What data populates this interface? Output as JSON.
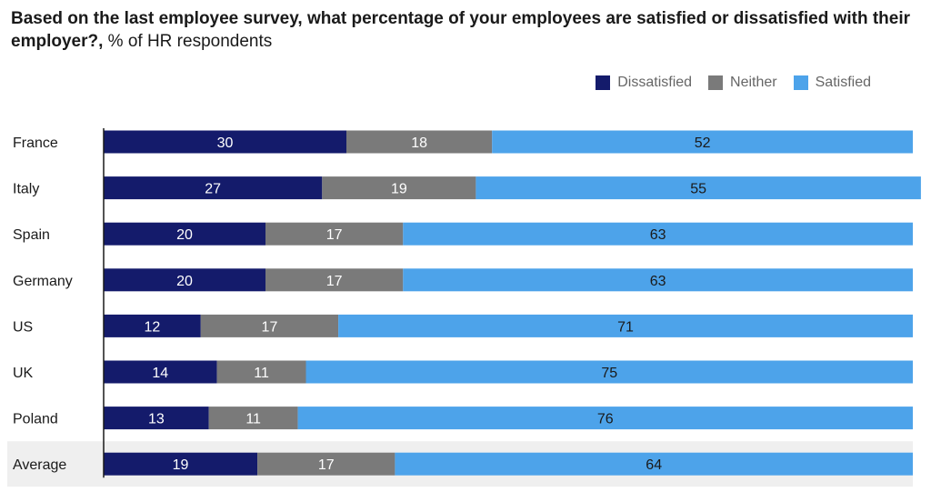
{
  "title": {
    "bold": "Based on the last employee survey, what percentage of your employees are satisfied or dissatisfied with their employer?,",
    "subtitle": "% of HR respondents"
  },
  "colors": {
    "dissatisfied": "#141b6b",
    "neither": "#7a7a7a",
    "satisfied": "#4da3ea",
    "average_band": "#efefef",
    "axis": "#1a1a1a"
  },
  "legend": [
    {
      "label": "Dissatisfied",
      "color_key": "dissatisfied"
    },
    {
      "label": "Neither",
      "color_key": "neither"
    },
    {
      "label": "Satisfied",
      "color_key": "satisfied"
    }
  ],
  "chart_data": {
    "type": "bar",
    "orientation": "horizontal",
    "stacked": true,
    "title": "Based on the last employee survey, what percentage of your employees are satisfied or dissatisfied with their employer?, % of HR respondents",
    "categories": [
      "France",
      "Italy",
      "Spain",
      "Germany",
      "US",
      "UK",
      "Poland",
      "Average"
    ],
    "highlight_category": "Average",
    "xlim": [
      0,
      100
    ],
    "legend_position": "top-right",
    "series": [
      {
        "name": "Dissatisfied",
        "key": "dissatisfied",
        "values": [
          30,
          27,
          20,
          20,
          12,
          14,
          13,
          19
        ]
      },
      {
        "name": "Neither",
        "key": "neither",
        "values": [
          18,
          19,
          17,
          17,
          17,
          11,
          11,
          17
        ]
      },
      {
        "name": "Satisfied",
        "key": "satisfied",
        "values": [
          52,
          55,
          63,
          63,
          71,
          75,
          76,
          64
        ]
      }
    ]
  }
}
